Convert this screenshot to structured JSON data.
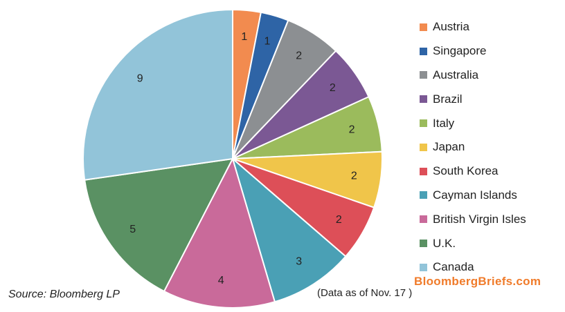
{
  "chart_data": {
    "type": "pie",
    "slices": [
      {
        "name": "Austria",
        "value": 1,
        "color": "#f28b4f"
      },
      {
        "name": "Singapore",
        "value": 1,
        "color": "#2e64a6"
      },
      {
        "name": "Australia",
        "value": 2,
        "color": "#8c8f92"
      },
      {
        "name": "Brazil",
        "value": 2,
        "color": "#7b5894"
      },
      {
        "name": "Italy",
        "value": 2,
        "color": "#9bbb5c"
      },
      {
        "name": "Japan",
        "value": 2,
        "color": "#f0c54a"
      },
      {
        "name": "South Korea",
        "value": 2,
        "color": "#dd4f58"
      },
      {
        "name": "Cayman Islands",
        "value": 3,
        "color": "#4aa0b5"
      },
      {
        "name": "British Virgin Isles",
        "value": 4,
        "color": "#c96a9a"
      },
      {
        "name": "U.K.",
        "value": 5,
        "color": "#5a9163"
      },
      {
        "name": "Canada",
        "value": 9,
        "color": "#92c4d9"
      }
    ],
    "legend_position": "right"
  },
  "source": "Source: Bloomberg LP",
  "brand": {
    "text": "BloombergBriefs.com",
    "color": "#f07b2a"
  },
  "note": "(Data as of Nov. 17  )"
}
